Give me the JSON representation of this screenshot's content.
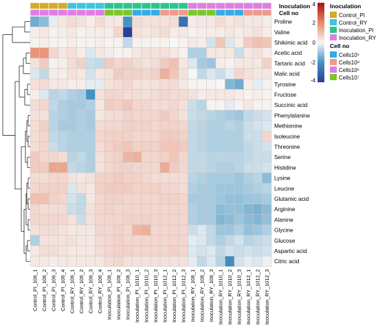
{
  "chart_data": {
    "type": "heatmap",
    "columns": [
      "Control_PI_106_1",
      "Control_PI_106_2",
      "Control_PI_106_3",
      "Control_PI_106_4",
      "Control_RY_106_1",
      "Control_RY_106_2",
      "Control_RY_106_3",
      "Control_RY_106_4",
      "Inoculation_PI_108_1",
      "Inoculation_PI_108_2",
      "Inoculation_PI_108_3",
      "Inoculation_PI_1010_1",
      "Inoculation_PI_1010_2",
      "Inoculation_PI_1010_3",
      "Inoculation_PI_1012_1",
      "Inoculation_PI_1012_2",
      "Inoculation_PI_1012_3",
      "Inoculation_RY_108_1",
      "Inoculation_RY_108_2",
      "Inoculation_RY_108_3",
      "Inoculation_RY_1010_1",
      "Inoculation_RY_1010_2",
      "Inoculation_RY_1010_3",
      "Inoculation_RY_1012_1",
      "Inoculation_RY_1012_2",
      "Inoculation_RY_1012_3"
    ],
    "rows": [
      "Proline",
      "Valine",
      "Shikimic acid",
      "Acetic acid",
      "Tartaric acid",
      "Malic acid",
      "Tyrosine",
      "Fructose",
      "Succinic acid",
      "Phenylalanine",
      "Methionine",
      "Isoleucine",
      "Threonine",
      "Serine",
      "Histidine",
      "Lysine",
      "Leucine",
      "Glutamic acid",
      "Arginine",
      "Alanine",
      "Glycine",
      "Glucose",
      "Aspartic acid",
      "Citric acid"
    ],
    "values": [
      [
        -1.5,
        -1.2,
        -0.2,
        0.3,
        0.5,
        0.4,
        0.2,
        0.5,
        0.3,
        0.3,
        -2.0,
        0.5,
        0.4,
        0.4,
        0.4,
        0.5,
        -2.8,
        0.2,
        0.3,
        0.3,
        0.5,
        0.3,
        0.4,
        0.3,
        0.3,
        0.2
      ],
      [
        0.2,
        0.3,
        0.1,
        0.2,
        0.3,
        0.1,
        0.2,
        0.2,
        0.2,
        0.6,
        -4.5,
        0.4,
        0.3,
        0.4,
        0.5,
        0.2,
        0.3,
        0.1,
        0.2,
        0.2,
        0.2,
        0.3,
        0.2,
        0.3,
        0.4,
        0.2
      ],
      [
        0.1,
        0.2,
        0.1,
        0.1,
        0.2,
        0.1,
        0.1,
        0.2,
        0.1,
        0.1,
        -0.6,
        0.1,
        0.1,
        0.1,
        0.1,
        0.0,
        0.1,
        0.3,
        0.2,
        -0.4,
        0.9,
        -0.3,
        0.2,
        0.8,
        1.0,
        0.9
      ],
      [
        1.8,
        1.8,
        0.6,
        0.3,
        0.4,
        0.2,
        -0.3,
        0.3,
        0.2,
        0.1,
        0.1,
        0.3,
        0.4,
        0.4,
        0.4,
        0.3,
        0.1,
        -0.8,
        -0.8,
        0.3,
        0.3,
        0.3,
        -0.5,
        0.3,
        0.4,
        0.2
      ],
      [
        0.4,
        0.8,
        0.1,
        0.2,
        0.5,
        0.7,
        -0.5,
        -0.6,
        0.8,
        0.6,
        0.7,
        0.5,
        0.4,
        0.5,
        0.8,
        1.0,
        0.3,
        -0.3,
        -0.9,
        -1.0,
        0.2,
        0.1,
        0.3,
        0.3,
        0.3,
        0.7
      ],
      [
        -0.3,
        -0.6,
        0.2,
        0.2,
        0.4,
        0.3,
        -0.4,
        0.3,
        0.4,
        0.8,
        0.7,
        0.7,
        0.6,
        0.7,
        1.3,
        0.9,
        0.4,
        0.0,
        -0.6,
        -0.3,
        -0.5,
        -0.2,
        0.6,
        0.4,
        0.3,
        0.3
      ],
      [
        0.4,
        0.5,
        0.3,
        0.3,
        0.2,
        0.2,
        -0.2,
        -0.2,
        0.4,
        0.5,
        0.6,
        0.4,
        0.4,
        0.4,
        0.5,
        0.5,
        0.3,
        0.1,
        0.1,
        0.1,
        0.0,
        -1.3,
        -1.5,
        0.2,
        -0.2,
        0.1
      ],
      [
        0.2,
        -0.3,
        -0.7,
        -0.6,
        -0.8,
        -0.9,
        -2.0,
        0.4,
        0.6,
        0.6,
        0.5,
        0.5,
        0.4,
        0.5,
        0.6,
        0.5,
        0.5,
        0.4,
        0.2,
        0.3,
        0.3,
        0.3,
        0.2,
        0.1,
        0.2,
        0.1
      ],
      [
        0.5,
        0.6,
        -0.6,
        -0.8,
        -0.9,
        -0.9,
        -0.8,
        0.3,
        0.8,
        0.7,
        0.9,
        0.6,
        0.6,
        0.5,
        0.5,
        0.6,
        0.4,
        -0.5,
        -0.7,
        0.1,
        0.1,
        -0.2,
        0.1,
        0.3,
        0.1,
        0.1
      ],
      [
        0.4,
        0.4,
        -0.7,
        -0.8,
        -0.9,
        -0.8,
        -0.9,
        0.3,
        0.5,
        0.5,
        0.7,
        0.6,
        0.6,
        0.6,
        0.8,
        0.6,
        0.4,
        -0.5,
        -0.6,
        -0.7,
        -0.8,
        -0.9,
        -1.0,
        -0.6,
        -0.5,
        -0.4
      ],
      [
        0.5,
        0.7,
        -0.7,
        -0.9,
        -0.9,
        -0.8,
        -0.9,
        0.5,
        0.6,
        0.6,
        0.7,
        0.7,
        0.7,
        0.6,
        0.7,
        0.7,
        0.6,
        -0.6,
        -0.7,
        -0.8,
        -0.8,
        -0.7,
        -0.8,
        -0.5,
        -0.4,
        -0.3
      ],
      [
        0.5,
        0.6,
        -0.6,
        -0.7,
        -0.8,
        -0.8,
        -0.8,
        0.6,
        0.7,
        0.7,
        0.7,
        0.6,
        0.6,
        0.6,
        0.8,
        0.8,
        0.7,
        -0.6,
        -0.7,
        -0.8,
        -0.8,
        -0.8,
        -0.8,
        -0.5,
        -0.5,
        0.6
      ],
      [
        0.5,
        0.6,
        -0.5,
        -0.7,
        -0.8,
        -0.8,
        -0.8,
        0.5,
        0.7,
        0.8,
        0.9,
        0.7,
        0.7,
        0.7,
        0.9,
        0.9,
        0.8,
        -0.6,
        -0.7,
        -0.8,
        -0.8,
        -0.8,
        -0.8,
        -0.6,
        -0.5,
        -0.4
      ],
      [
        0.8,
        0.6,
        0.6,
        0.5,
        -0.7,
        -0.6,
        -0.8,
        0.4,
        0.6,
        0.7,
        1.2,
        1.3,
        0.6,
        0.6,
        0.7,
        0.9,
        0.6,
        -0.6,
        -0.6,
        -0.7,
        -0.7,
        -0.7,
        -0.7,
        -0.6,
        -0.5,
        -0.5
      ],
      [
        0.8,
        0.8,
        1.5,
        1.5,
        -0.6,
        -0.7,
        -0.8,
        0.4,
        0.6,
        0.7,
        0.7,
        0.6,
        0.6,
        0.6,
        1.4,
        0.8,
        0.6,
        -0.6,
        -0.6,
        -0.7,
        -0.8,
        -0.8,
        -0.7,
        -0.5,
        -0.5,
        -0.4
      ],
      [
        0.5,
        0.5,
        0.6,
        0.6,
        0.4,
        0.3,
        0.4,
        0.7,
        0.7,
        0.8,
        0.7,
        0.7,
        0.6,
        0.5,
        0.5,
        0.5,
        0.5,
        -0.7,
        -0.8,
        -0.9,
        -0.9,
        -0.9,
        -1.0,
        -0.8,
        -0.7,
        -1.2
      ],
      [
        0.6,
        0.7,
        0.7,
        0.7,
        -0.3,
        0.4,
        0.3,
        0.7,
        0.8,
        0.8,
        0.8,
        0.7,
        0.7,
        0.7,
        0.6,
        0.6,
        0.5,
        -0.8,
        -0.9,
        -0.9,
        -1.0,
        -1.0,
        -1.0,
        -0.9,
        -0.8,
        -0.7
      ],
      [
        1.0,
        1.0,
        0.7,
        0.6,
        -0.4,
        -0.6,
        0.3,
        0.6,
        0.7,
        0.7,
        0.6,
        0.6,
        0.6,
        0.6,
        0.7,
        0.7,
        0.6,
        -0.9,
        -0.9,
        -0.9,
        -1.0,
        -1.1,
        -1.1,
        -1.0,
        -1.0,
        -0.9
      ],
      [
        0.6,
        0.5,
        0.5,
        0.5,
        -0.5,
        -0.6,
        0.4,
        0.6,
        0.7,
        0.6,
        0.6,
        0.6,
        0.6,
        0.6,
        0.6,
        0.6,
        0.6,
        -0.8,
        -0.9,
        -0.9,
        -1.2,
        -1.1,
        -1.1,
        -1.3,
        -1.4,
        -1.2
      ],
      [
        0.6,
        0.6,
        0.6,
        0.6,
        0.4,
        -0.5,
        0.4,
        0.6,
        0.6,
        0.6,
        0.7,
        0.7,
        0.7,
        0.6,
        0.6,
        0.6,
        0.6,
        -0.8,
        -0.9,
        -0.9,
        -1.3,
        -1.2,
        -1.0,
        -1.2,
        -1.3,
        -1.1
      ],
      [
        0.4,
        0.5,
        0.5,
        0.4,
        0.3,
        0.3,
        0.3,
        0.6,
        0.6,
        0.7,
        0.6,
        1.2,
        1.3,
        0.6,
        0.6,
        0.6,
        0.6,
        -0.5,
        -0.3,
        -0.6,
        -1.0,
        -1.0,
        -0.8,
        -1.1,
        -1.0,
        -0.8
      ],
      [
        -0.8,
        0.4,
        0.4,
        0.4,
        0.4,
        0.3,
        0.3,
        0.5,
        0.6,
        0.7,
        0.6,
        0.6,
        0.6,
        0.6,
        0.6,
        0.6,
        0.6,
        -0.2,
        -0.3,
        -0.6,
        -0.8,
        -0.6,
        -0.4,
        -0.7,
        -0.6,
        -0.5
      ],
      [
        0.3,
        0.5,
        0.5,
        0.4,
        0.3,
        0.3,
        0.3,
        0.5,
        0.6,
        0.7,
        0.7,
        0.6,
        0.6,
        0.6,
        0.6,
        0.7,
        0.6,
        -0.3,
        -0.4,
        -0.3,
        -0.6,
        -0.4,
        -0.5,
        -0.4,
        -0.5,
        -0.4
      ],
      [
        0.3,
        0.3,
        0.2,
        0.3,
        0.3,
        0.3,
        0.3,
        0.3,
        0.5,
        0.6,
        0.4,
        0.4,
        0.4,
        0.4,
        0.4,
        0.4,
        0.4,
        -0.2,
        -0.6,
        -0.3,
        -0.7,
        -2.2,
        -0.4,
        -0.2,
        -0.3,
        -0.1
      ]
    ],
    "color_scale": {
      "min": -4,
      "max": 4,
      "ticks": [
        4,
        2,
        0,
        -2,
        -4
      ],
      "low_color": "#2b3f99",
      "mid_color": "#f7f7f7",
      "high_color": "#a50f15"
    },
    "annotation_tracks": [
      {
        "name": "Inoculation",
        "values": [
          "Control_PI",
          "Control_PI",
          "Control_PI",
          "Control_PI",
          "Control_RY",
          "Control_RY",
          "Control_RY",
          "Control_RY",
          "Inoculation_PI",
          "Inoculation_PI",
          "Inoculation_PI",
          "Inoculation_PI",
          "Inoculation_PI",
          "Inoculation_PI",
          "Inoculation_PI",
          "Inoculation_PI",
          "Inoculation_PI",
          "Inoculation_RY",
          "Inoculation_RY",
          "Inoculation_RY",
          "Inoculation_RY",
          "Inoculation_RY",
          "Inoculation_RY",
          "Inoculation_RY",
          "Inoculation_RY",
          "Inoculation_RY"
        ]
      },
      {
        "name": "Cell no",
        "values": [
          "Cells10⁶",
          "Cells10⁶",
          "Cells10⁶",
          "Cells10⁶",
          "Cells10⁶",
          "Cells10⁶",
          "Cells10⁶",
          "Cells10⁶",
          "Cells10⁷",
          "Cells10⁷",
          "Cells10⁷",
          "Cells10⁵",
          "Cells10⁵",
          "Cells10⁵",
          "Cells10⁸",
          "Cells10⁸",
          "Cells10⁸",
          "Cells10⁷",
          "Cells10⁷",
          "Cells10⁷",
          "Cells10⁵",
          "Cells10⁵",
          "Cells10⁵",
          "Cells10⁸",
          "Cells10⁸",
          "Cells10⁸"
        ]
      }
    ],
    "legend": {
      "inoculation_title": "Inoculation",
      "inoculation_items": [
        {
          "label": "Control_PI",
          "color": "#d6a92a"
        },
        {
          "label": "Control_RY",
          "color": "#3fc3de"
        },
        {
          "label": "Inoculation_PI",
          "color": "#2ec38c"
        },
        {
          "label": "Inoculation_RY",
          "color": "#dc7fe0"
        }
      ],
      "cell_title": "Cell no",
      "cell_items": [
        {
          "label": "Cells10⁵",
          "color": "#37a9e6"
        },
        {
          "label": "Cells10⁸",
          "color": "#ef9a8c"
        },
        {
          "label": "Cells10⁶",
          "color": "#e17ce6"
        },
        {
          "label": "Cells10⁷",
          "color": "#7cc62a"
        }
      ]
    },
    "legend_placement": "right",
    "dendrogram": "rows"
  }
}
